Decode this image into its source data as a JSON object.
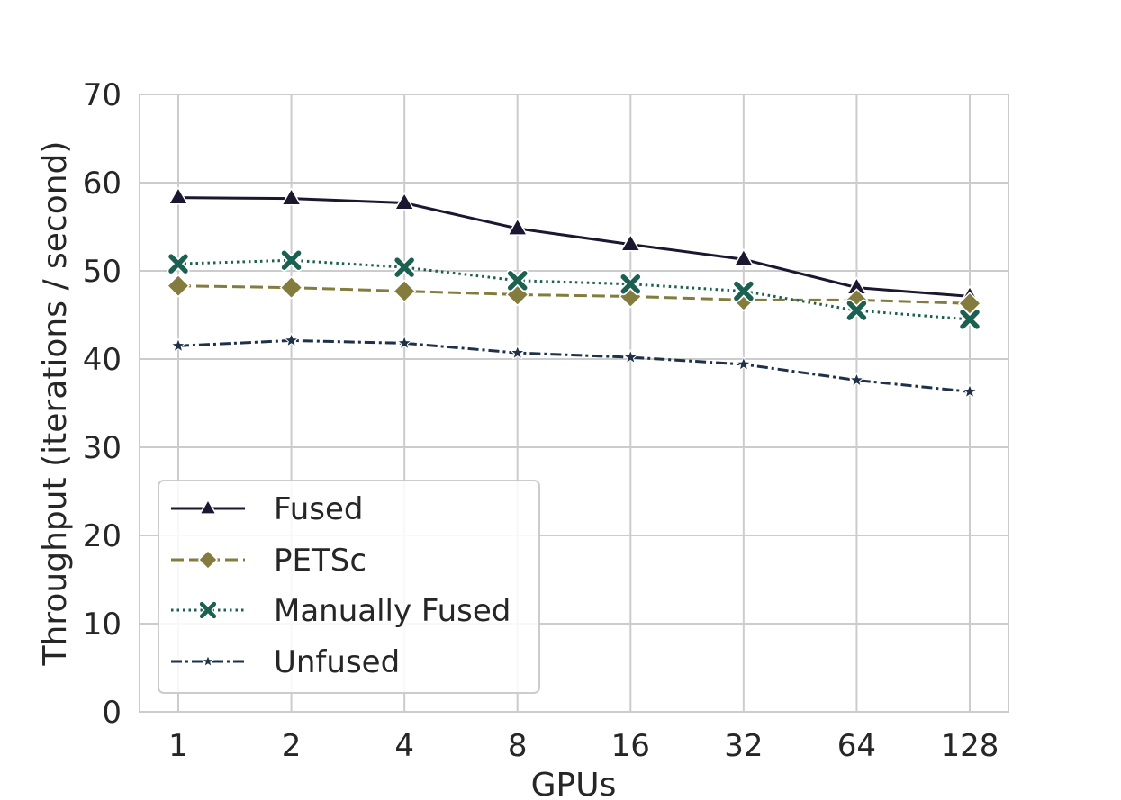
{
  "chart_data": {
    "type": "line",
    "title": "",
    "xlabel": "GPUs",
    "ylabel": "Throughput (iterations / second)",
    "categories": [
      "1",
      "2",
      "4",
      "8",
      "16",
      "32",
      "64",
      "128"
    ],
    "ylim": [
      0,
      70
    ],
    "yticks": [
      "0",
      "10",
      "20",
      "30",
      "40",
      "50",
      "60",
      "70"
    ],
    "grid": true,
    "legend_position": "lower-left",
    "series": [
      {
        "name": "Fused",
        "values": [
          58.3,
          58.2,
          57.7,
          54.8,
          53.0,
          51.3,
          48.1,
          47.1
        ],
        "color": "#1c1730",
        "dash": "solid",
        "marker": "triangle"
      },
      {
        "name": "PETSc",
        "values": [
          48.3,
          48.1,
          47.7,
          47.3,
          47.1,
          46.7,
          46.7,
          46.3
        ],
        "color": "#837c3e",
        "dash": "dashed",
        "marker": "diamond"
      },
      {
        "name": "Manually Fused",
        "values": [
          50.8,
          51.2,
          50.4,
          48.9,
          48.5,
          47.7,
          45.5,
          44.5
        ],
        "color": "#1b6050",
        "dash": "dotted",
        "marker": "x"
      },
      {
        "name": "Unfused",
        "values": [
          41.5,
          42.1,
          41.8,
          40.7,
          40.2,
          39.4,
          37.6,
          36.3
        ],
        "color": "#1e3148",
        "dash": "dashdot",
        "marker": "star"
      }
    ]
  }
}
